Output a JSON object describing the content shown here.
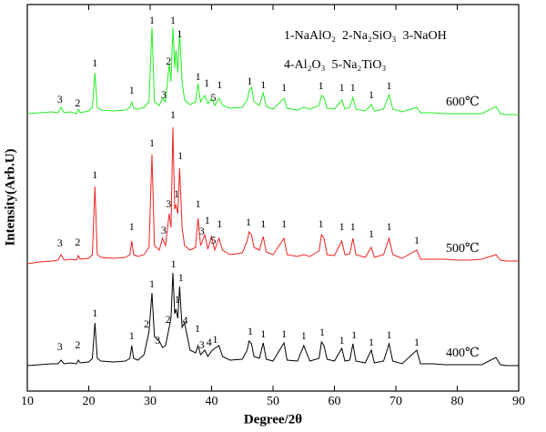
{
  "chart_data": {
    "type": "line",
    "xlabel": "Degree/2θ",
    "ylabel": "Intensity(Arb.U)",
    "legend_text": [
      "1-NaAlO₂  2-Na₂SiO₃  3-NaOH",
      "4-Al₂O₃  5-Na₂TiO₃"
    ],
    "xlim": [
      10,
      90
    ],
    "xticks": [
      10,
      20,
      30,
      40,
      50,
      60,
      70,
      80,
      90
    ],
    "ylim": [
      0,
      425
    ],
    "x": [
      10,
      12,
      14,
      15,
      15.5,
      16,
      17,
      18,
      18.3,
      18.6,
      20,
      20.6,
      21,
      21.4,
      22,
      24,
      26,
      26.7,
      27,
      27.3,
      28,
      29,
      29.8,
      30.3,
      30.7,
      31.5,
      32,
      32.5,
      33.1,
      33.4,
      33.7,
      34.0,
      34.2,
      34.5,
      34.8,
      35.2,
      35.6,
      36.5,
      37.4,
      37.8,
      38.2,
      38.9,
      39.4,
      40,
      40.5,
      41.2,
      41.8,
      43,
      45,
      45.8,
      46.1,
      46.5,
      46.9,
      47.8,
      48.4,
      48.9,
      50,
      51.8,
      52.3,
      54,
      55,
      56,
      57.5,
      57.9,
      58.3,
      58.8,
      60,
      61.2,
      61.7,
      62.5,
      63.0,
      63.5,
      65,
      66,
      66.5,
      68,
      68.9,
      69.5,
      71,
      73.4,
      74,
      76,
      78,
      80,
      82,
      84,
      86.3,
      87,
      88,
      90
    ],
    "series": [
      {
        "name": "600℃",
        "color": "#22ee22",
        "values": [
          305,
          306,
          307,
          306,
          312,
          306,
          307,
          305,
          310,
          306,
          308,
          312,
          350,
          312,
          309,
          308,
          309,
          312,
          318,
          311,
          310,
          312,
          318,
          400,
          318,
          314,
          322,
          318,
          360,
          340,
          400,
          355,
          375,
          350,
          395,
          340,
          320,
          315,
          318,
          338,
          318,
          325,
          316,
          322,
          314,
          322,
          314,
          311,
          312,
          320,
          330,
          334,
          318,
          314,
          328,
          313,
          310,
          322,
          311,
          309,
          312,
          310,
          314,
          325,
          323,
          311,
          310,
          320,
          310,
          312,
          323,
          310,
          308,
          315,
          308,
          310,
          326,
          310,
          307,
          312,
          306,
          306,
          305,
          305,
          305,
          305,
          313,
          305,
          304,
          304
        ],
        "peak_labels": [
          {
            "text": "3",
            "x": 15.3,
            "y": 320
          },
          {
            "text": "2",
            "x": 18.2,
            "y": 316
          },
          {
            "text": "1",
            "x": 21,
            "y": 360
          },
          {
            "text": "1",
            "x": 27,
            "y": 330
          },
          {
            "text": "1",
            "x": 30.3,
            "y": 407
          },
          {
            "text": "3",
            "x": 32.2,
            "y": 325
          },
          {
            "text": "2",
            "x": 33.0,
            "y": 362
          },
          {
            "text": "1",
            "x": 33.7,
            "y": 407
          },
          {
            "text": "1",
            "x": 34.8,
            "y": 392
          },
          {
            "text": "1",
            "x": 37.8,
            "y": 345
          },
          {
            "text": "1",
            "x": 39.2,
            "y": 338
          },
          {
            "text": "5",
            "x": 40.3,
            "y": 322
          },
          {
            "text": "1",
            "x": 41.3,
            "y": 336
          },
          {
            "text": "1",
            "x": 46.2,
            "y": 340
          },
          {
            "text": "1",
            "x": 48.4,
            "y": 336
          },
          {
            "text": "1",
            "x": 51.8,
            "y": 333
          },
          {
            "text": "1",
            "x": 57.8,
            "y": 335
          },
          {
            "text": "1",
            "x": 61.2,
            "y": 333
          },
          {
            "text": "1",
            "x": 63,
            "y": 333
          },
          {
            "text": "1",
            "x": 66,
            "y": 325
          },
          {
            "text": "1",
            "x": 68.9,
            "y": 335
          }
        ]
      },
      {
        "name": "500℃",
        "color": "#ee2222",
        "values": [
          140,
          142,
          143,
          144,
          150,
          144,
          145,
          144,
          149,
          145,
          146,
          150,
          225,
          150,
          147,
          146,
          147,
          150,
          165,
          150,
          148,
          150,
          158,
          260,
          160,
          155,
          168,
          160,
          195,
          180,
          290,
          200,
          205,
          195,
          245,
          180,
          160,
          155,
          158,
          190,
          160,
          172,
          156,
          170,
          155,
          168,
          155,
          150,
          152,
          165,
          175,
          172,
          158,
          155,
          170,
          153,
          150,
          168,
          150,
          148,
          150,
          148,
          154,
          172,
          168,
          150,
          149,
          165,
          150,
          151,
          168,
          150,
          147,
          158,
          147,
          150,
          168,
          150,
          146,
          155,
          145,
          145,
          145,
          144,
          144,
          145,
          150,
          144,
          143,
          143
        ],
        "peak_labels": [
          {
            "text": "3",
            "x": 15.3,
            "y": 162
          },
          {
            "text": "2",
            "x": 18.2,
            "y": 163
          },
          {
            "text": "1",
            "x": 21,
            "y": 237
          },
          {
            "text": "1",
            "x": 27,
            "y": 180
          },
          {
            "text": "1",
            "x": 30.3,
            "y": 272
          },
          {
            "text": "3",
            "x": 32.2,
            "y": 176
          },
          {
            "text": "3",
            "x": 33.0,
            "y": 205
          },
          {
            "text": "1",
            "x": 33.7,
            "y": 303
          },
          {
            "text": "1",
            "x": 34.3,
            "y": 216
          },
          {
            "text": "1",
            "x": 34.9,
            "y": 258
          },
          {
            "text": "1",
            "x": 37.8,
            "y": 205
          },
          {
            "text": "3",
            "x": 38.4,
            "y": 175
          },
          {
            "text": "1",
            "x": 39.3,
            "y": 187
          },
          {
            "text": "5",
            "x": 40.3,
            "y": 165
          },
          {
            "text": "1",
            "x": 41.3,
            "y": 183
          },
          {
            "text": "1",
            "x": 46,
            "y": 185
          },
          {
            "text": "1",
            "x": 48.4,
            "y": 183
          },
          {
            "text": "1",
            "x": 51.8,
            "y": 183
          },
          {
            "text": "1",
            "x": 57.8,
            "y": 183
          },
          {
            "text": "1",
            "x": 61.2,
            "y": 180
          },
          {
            "text": "1",
            "x": 63,
            "y": 180
          },
          {
            "text": "1",
            "x": 66,
            "y": 172
          },
          {
            "text": "1",
            "x": 68.9,
            "y": 180
          },
          {
            "text": "1",
            "x": 73.4,
            "y": 165
          }
        ]
      },
      {
        "name": "400℃",
        "color": "#000000",
        "values": [
          28,
          29,
          30,
          30,
          34,
          30,
          31,
          30,
          34,
          31,
          32,
          36,
          75,
          36,
          33,
          32,
          33,
          36,
          50,
          36,
          34,
          40,
          65,
          108,
          60,
          55,
          48,
          50,
          70,
          80,
          130,
          85,
          90,
          80,
          115,
          70,
          75,
          45,
          42,
          50,
          40,
          45,
          38,
          44,
          47,
          50,
          38,
          34,
          35,
          45,
          55,
          52,
          38,
          36,
          53,
          35,
          33,
          53,
          34,
          33,
          50,
          33,
          36,
          54,
          50,
          35,
          33,
          47,
          33,
          34,
          52,
          33,
          31,
          45,
          31,
          33,
          52,
          33,
          30,
          45,
          30,
          30,
          29,
          29,
          29,
          29,
          37,
          29,
          28,
          28
        ],
        "peak_labels": [
          {
            "text": "3",
            "x": 15.3,
            "y": 48
          },
          {
            "text": "2",
            "x": 18.2,
            "y": 50
          },
          {
            "text": "1",
            "x": 21,
            "y": 85
          },
          {
            "text": "1",
            "x": 27,
            "y": 60
          },
          {
            "text": "2",
            "x": 29.4,
            "y": 73
          },
          {
            "text": "1",
            "x": 30.3,
            "y": 117
          },
          {
            "text": "3",
            "x": 31.2,
            "y": 55
          },
          {
            "text": "2",
            "x": 32.9,
            "y": 78
          },
          {
            "text": "1",
            "x": 33.8,
            "y": 139
          },
          {
            "text": "1",
            "x": 34.4,
            "y": 100
          },
          {
            "text": "1",
            "x": 35,
            "y": 124
          },
          {
            "text": "4",
            "x": 35.7,
            "y": 77
          },
          {
            "text": "1",
            "x": 37.7,
            "y": 68
          },
          {
            "text": "3",
            "x": 38.4,
            "y": 50
          },
          {
            "text": "4",
            "x": 39.6,
            "y": 53
          },
          {
            "text": "1",
            "x": 40.6,
            "y": 56
          },
          {
            "text": "1",
            "x": 46.3,
            "y": 65
          },
          {
            "text": "1",
            "x": 48.4,
            "y": 62
          },
          {
            "text": "1",
            "x": 51.8,
            "y": 62
          },
          {
            "text": "1",
            "x": 55,
            "y": 60
          },
          {
            "text": "1",
            "x": 58,
            "y": 64
          },
          {
            "text": "1",
            "x": 61.2,
            "y": 55
          },
          {
            "text": "1",
            "x": 63.2,
            "y": 61
          },
          {
            "text": "1",
            "x": 66,
            "y": 53
          },
          {
            "text": "1",
            "x": 68.9,
            "y": 61
          },
          {
            "text": "1",
            "x": 73.4,
            "y": 53
          }
        ]
      }
    ]
  }
}
